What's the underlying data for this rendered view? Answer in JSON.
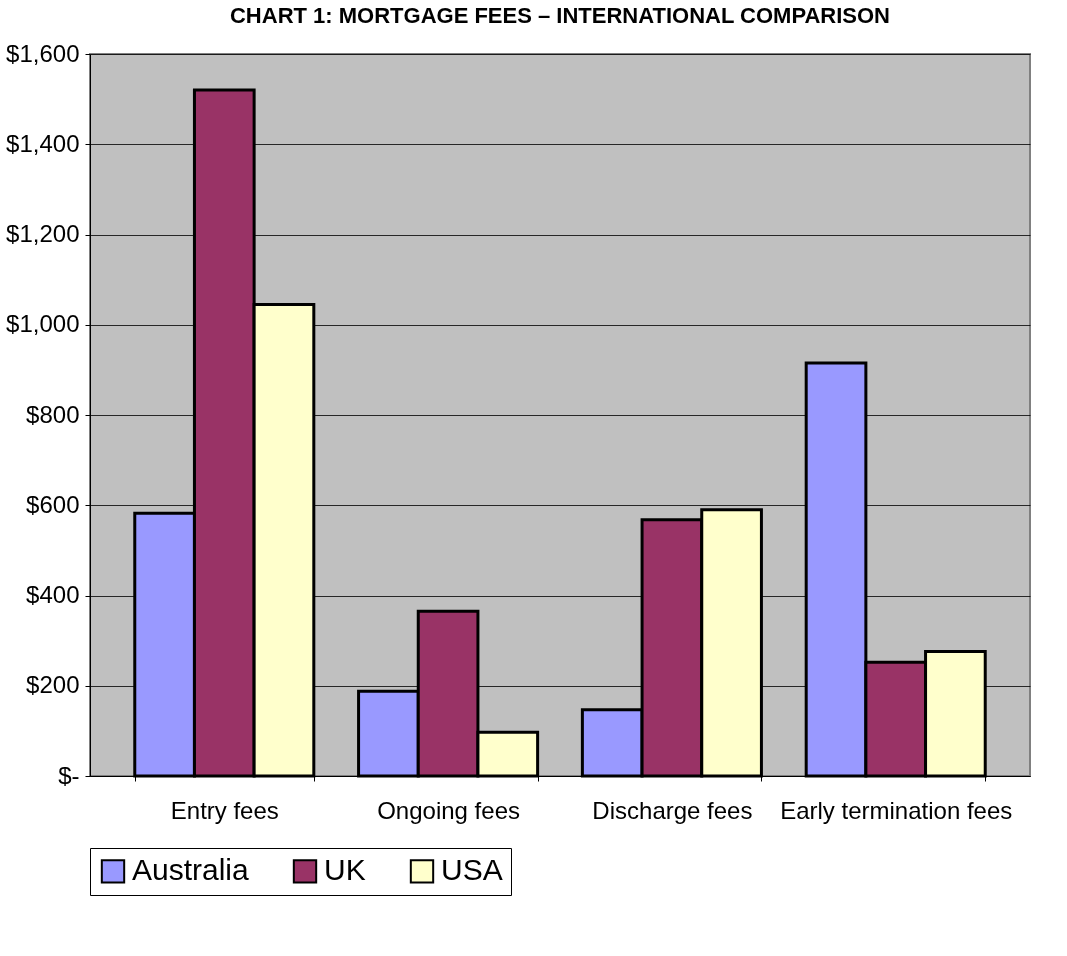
{
  "chart_data": {
    "type": "bar",
    "title": "CHART 1: MORTGAGE FEES – INTERNATIONAL COMPARISON",
    "categories": [
      "Entry fees",
      "Ongoing fees",
      "Discharge fees",
      "Early termination fees"
    ],
    "series": [
      {
        "name": "Australia",
        "color": "#9999ff",
        "values": [
          582,
          188,
          147,
          915
        ]
      },
      {
        "name": "UK",
        "color": "#993366",
        "values": [
          1520,
          365,
          568,
          252
        ]
      },
      {
        "name": "USA",
        "color": "#ffffcc",
        "values": [
          1045,
          97,
          590,
          276
        ]
      }
    ],
    "ylim": [
      0,
      1600
    ],
    "yticks": [
      {
        "value": 0,
        "label": "$-"
      },
      {
        "value": 200,
        "label": "$200"
      },
      {
        "value": 400,
        "label": "$400"
      },
      {
        "value": 600,
        "label": "$600"
      },
      {
        "value": 800,
        "label": "$800"
      },
      {
        "value": 1000,
        "label": "$1,000"
      },
      {
        "value": 1200,
        "label": "$1,200"
      },
      {
        "value": 1400,
        "label": "$1,400"
      },
      {
        "value": 1600,
        "label": "$1,600"
      }
    ],
    "grid": "y",
    "legend": "bottom"
  }
}
